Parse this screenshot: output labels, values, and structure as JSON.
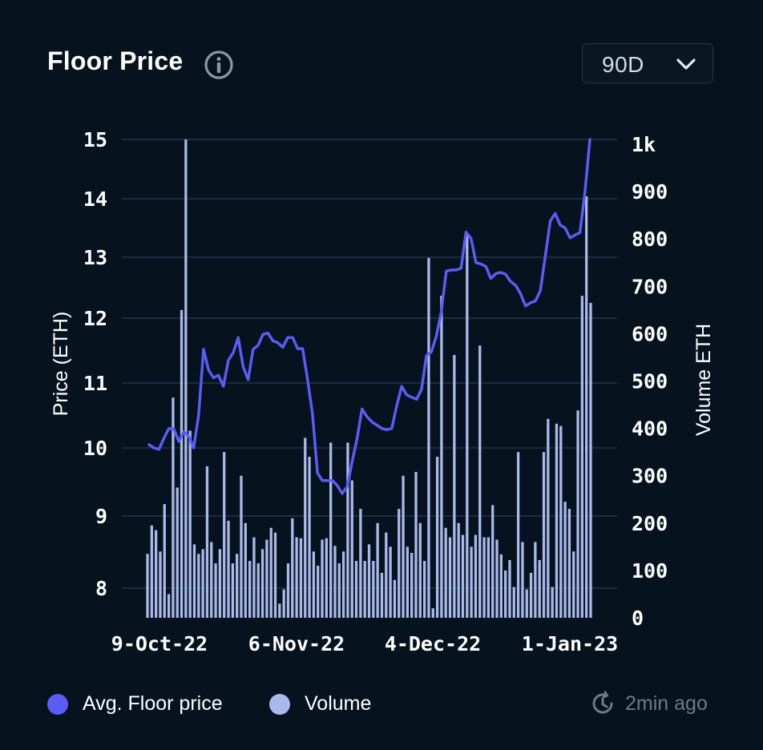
{
  "header": {
    "title": "Floor Price",
    "range": "90D"
  },
  "icons": {
    "info": "info-icon",
    "dropdown": "chevron-down-icon",
    "refresh": "clock-refresh-icon"
  },
  "colors": {
    "background": "#06121d",
    "price_line": "#5a5cf6",
    "volume_bar": "#a9b9ea",
    "grid": "#243449",
    "muted": "#6f7a85"
  },
  "legend": {
    "price": {
      "label": "Avg. Floor price",
      "color": "#5a5cf6"
    },
    "volume": {
      "label": "Volume",
      "color": "#a9b9ea"
    }
  },
  "status": {
    "updated": "2min ago"
  },
  "chart_data": {
    "type": "bar+line",
    "ylabel": "Price (ETH)",
    "y2label": "Volume ETH",
    "price_ticks": [
      "15",
      "14",
      "13",
      "12",
      "11",
      "10",
      "9",
      "8"
    ],
    "volume_ticks": [
      "1k",
      "900",
      "800",
      "700",
      "600",
      "500",
      "400",
      "300",
      "200",
      "100",
      "0"
    ],
    "x_ticks": [
      "9-Oct-22",
      "6-Nov-22",
      "4-Dec-22",
      "1-Jan-23"
    ],
    "x_range": [
      "2022-10-09",
      "2023-01-04"
    ],
    "y2lim": [
      0,
      1000
    ],
    "grid": true,
    "legend_position": "bottom",
    "series": [
      {
        "name": "Volume",
        "type": "bar",
        "values": [
          135,
          195,
          185,
          140,
          240,
          50,
          465,
          275,
          650,
          1010,
          395,
          155,
          135,
          145,
          320,
          160,
          115,
          145,
          350,
          205,
          115,
          135,
          300,
          200,
          120,
          170,
          115,
          145,
          165,
          190,
          180,
          30,
          60,
          115,
          210,
          170,
          168,
          380,
          340,
          140,
          110,
          165,
          168,
          370,
          152,
          115,
          140,
          370,
          290,
          120,
          230,
          120,
          155,
          120,
          200,
          95,
          180,
          150,
          80,
          230,
          300,
          150,
          137,
          308,
          200,
          120,
          760,
          20,
          340,
          680,
          190,
          170,
          555,
          200,
          175,
          810,
          150,
          175,
          575,
          170,
          170,
          238,
          165,
          134,
          100,
          122,
          65,
          350,
          160,
          60,
          95,
          160,
          122,
          350,
          420,
          65,
          410,
          405,
          245,
          230,
          140,
          438,
          680,
          890,
          665
        ]
      },
      {
        "name": "Avg. Floor price",
        "type": "line",
        "points": [
          [
            0,
            10.05
          ],
          [
            1,
            10.0
          ],
          [
            2,
            9.98
          ],
          [
            3,
            10.15
          ],
          [
            4,
            10.3
          ],
          [
            5,
            10.29
          ],
          [
            6,
            10.1
          ],
          [
            7,
            10.25
          ],
          [
            8,
            10.18
          ],
          [
            9,
            10.0
          ],
          [
            10,
            10.5
          ],
          [
            11,
            11.52
          ],
          [
            12,
            11.2
          ],
          [
            13,
            11.08
          ],
          [
            14,
            11.12
          ],
          [
            15,
            10.95
          ],
          [
            16,
            11.35
          ],
          [
            17,
            11.47
          ],
          [
            18,
            11.7
          ],
          [
            19,
            11.25
          ],
          [
            20,
            11.05
          ],
          [
            21,
            11.52
          ],
          [
            22,
            11.58
          ],
          [
            23,
            11.75
          ],
          [
            24,
            11.77
          ],
          [
            25,
            11.65
          ],
          [
            26,
            11.62
          ],
          [
            27,
            11.55
          ],
          [
            28,
            11.7
          ],
          [
            29,
            11.7
          ],
          [
            30,
            11.53
          ],
          [
            31,
            11.53
          ],
          [
            32,
            11.05
          ],
          [
            33,
            10.52
          ],
          [
            34,
            9.63
          ],
          [
            35,
            9.52
          ],
          [
            36,
            9.52
          ],
          [
            37,
            9.52
          ],
          [
            38,
            9.45
          ],
          [
            39,
            9.33
          ],
          [
            40,
            9.43
          ],
          [
            41,
            9.8
          ],
          [
            42,
            10.15
          ],
          [
            43,
            10.6
          ],
          [
            44,
            10.48
          ],
          [
            45,
            10.4
          ],
          [
            46,
            10.35
          ],
          [
            47,
            10.3
          ],
          [
            48,
            10.28
          ],
          [
            49,
            10.3
          ],
          [
            50,
            10.65
          ],
          [
            51,
            10.95
          ],
          [
            52,
            10.82
          ],
          [
            53,
            10.78
          ],
          [
            54,
            10.75
          ],
          [
            55,
            10.9
          ],
          [
            56,
            11.42
          ],
          [
            57,
            11.48
          ],
          [
            58,
            11.72
          ],
          [
            59,
            12.1
          ],
          [
            60,
            12.77
          ],
          [
            61,
            12.79
          ],
          [
            62,
            12.79
          ],
          [
            63,
            12.82
          ],
          [
            64,
            13.43
          ],
          [
            65,
            13.32
          ],
          [
            66,
            12.91
          ],
          [
            67,
            12.89
          ],
          [
            68,
            12.85
          ],
          [
            69,
            12.65
          ],
          [
            70,
            12.73
          ],
          [
            71,
            12.75
          ],
          [
            72,
            12.72
          ],
          [
            73,
            12.6
          ],
          [
            74,
            12.54
          ],
          [
            75,
            12.4
          ],
          [
            76,
            12.2
          ],
          [
            77,
            12.25
          ],
          [
            78,
            12.28
          ],
          [
            79,
            12.45
          ],
          [
            80,
            13.02
          ],
          [
            81,
            13.62
          ],
          [
            82,
            13.75
          ],
          [
            83,
            13.55
          ],
          [
            84,
            13.5
          ],
          [
            85,
            13.33
          ],
          [
            86,
            13.38
          ],
          [
            87,
            13.42
          ],
          [
            88,
            14.1
          ],
          [
            89,
            15.0
          ]
        ]
      }
    ]
  }
}
